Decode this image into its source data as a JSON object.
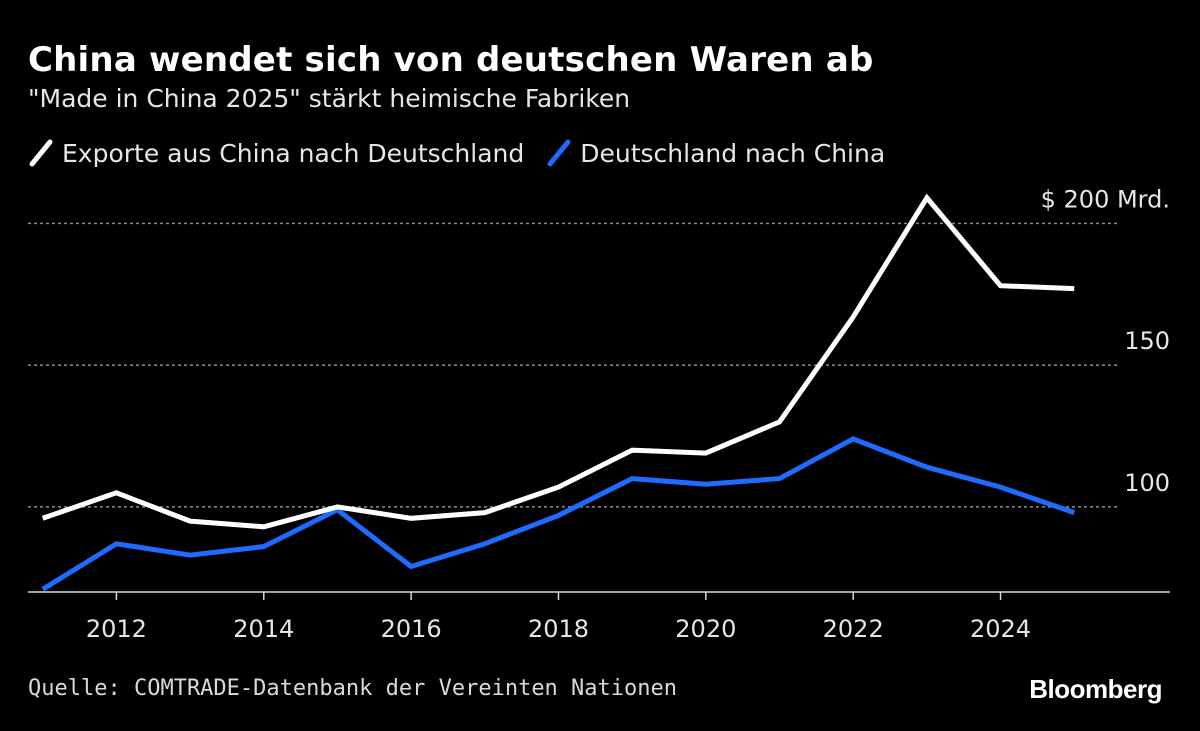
{
  "title": "China wendet sich von deutschen Waren ab",
  "subtitle": "\"Made in China 2025\" stärkt heimische Fabriken",
  "source": "Quelle: COMTRADE-Datenbank der Vereinten Nationen",
  "brand": "Bloomberg",
  "colors": {
    "background": "#000000",
    "series_china_exports": "#ffffff",
    "series_germany_exports": "#1f6bff",
    "grid": "#8c8c8c"
  },
  "chart_data": {
    "type": "line",
    "title": "China wendet sich von deutschen Waren ab",
    "xlabel": "",
    "ylabel": "",
    "x": [
      2011,
      2012,
      2013,
      2014,
      2015,
      2016,
      2017,
      2018,
      2019,
      2020,
      2021,
      2022,
      2023,
      2024,
      2025
    ],
    "series": [
      {
        "name": "Exporte aus China nach Deutschland",
        "color": "#ffffff",
        "values": [
          96,
          105,
          95,
          93,
          100,
          96,
          98,
          107,
          120,
          119,
          130,
          167,
          209,
          178,
          177
        ]
      },
      {
        "name": "Deutschland nach China",
        "color": "#1f6bff",
        "values": [
          71,
          87,
          83,
          86,
          99,
          79,
          87,
          97,
          110,
          108,
          110,
          124,
          114,
          107,
          98
        ]
      }
    ],
    "x_ticks": [
      2012,
      2014,
      2016,
      2018,
      2020,
      2022,
      2024
    ],
    "x_tick_labels": [
      "2012",
      "2014",
      "2016",
      "2018",
      "2020",
      "2022",
      "2024"
    ],
    "y_gridlines": [
      100,
      150,
      200
    ],
    "y_tick_labels": [
      "100",
      "150",
      "$ 200 Mrd."
    ],
    "ylim": [
      70,
      210
    ],
    "xlim": [
      2010.8,
      2026.3
    ],
    "grid": true,
    "legend": "top-left"
  }
}
